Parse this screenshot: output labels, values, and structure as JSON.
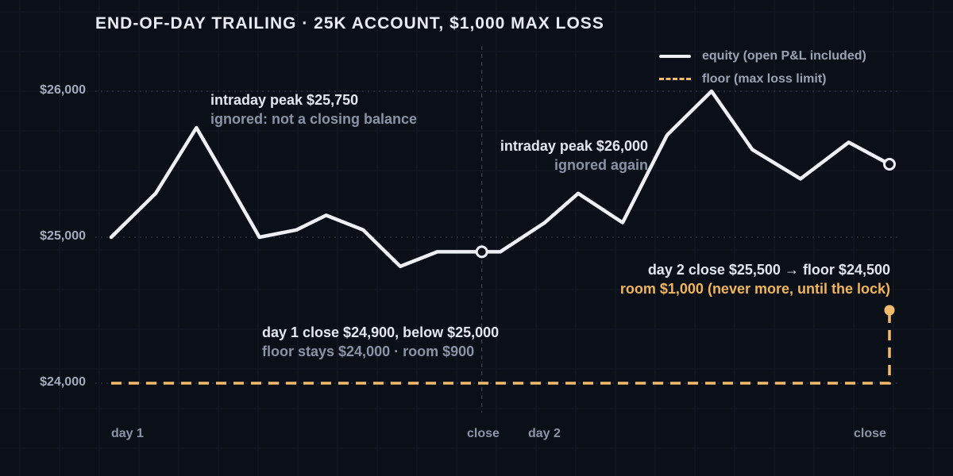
{
  "title": "END-OF-DAY TRAILING · 25K ACCOUNT, $1,000 MAX LOSS",
  "legend": {
    "equity": "equity (open P&L included)",
    "floor": "floor (max loss limit)"
  },
  "colors": {
    "background": "#0b0f17",
    "equity": "#eef0f6",
    "floor": "#f2bc6c",
    "muted_text": "#8a93a6"
  },
  "annotations": {
    "peak1": {
      "line1": "intraday peak $25,750",
      "line2": "ignored: not a closing balance"
    },
    "peak2": {
      "line1": "intraday peak $26,000",
      "line2": "ignored again"
    },
    "day1_close": {
      "line1": "day 1 close $24,900, below $25,000",
      "line2": "floor stays $24,000 · room $900"
    },
    "day2_close": {
      "line1": "day 2 close $25,500 → floor $24,500",
      "line2": "room $1,000 (never more, until the lock)"
    }
  },
  "chart_data": {
    "type": "line",
    "title": "END-OF-DAY TRAILING · 25K ACCOUNT, $1,000 MAX LOSS",
    "y_ticks": [
      {
        "value": 24000,
        "label": "$24,000"
      },
      {
        "value": 25000,
        "label": "$25,000"
      },
      {
        "value": 26000,
        "label": "$26,000"
      }
    ],
    "x_labels": [
      {
        "x": 0,
        "label": "day 1",
        "align": "start"
      },
      {
        "x": 10,
        "label": "close",
        "align": "center"
      },
      {
        "x": 11,
        "label": "day 2",
        "align": "start"
      },
      {
        "x": 21,
        "label": "close",
        "align": "end"
      }
    ],
    "ylim": [
      23700,
      26500
    ],
    "xlim": [
      0,
      21
    ],
    "session_divider_x": 10,
    "series": [
      {
        "name": "equity (open P&L included)",
        "x": [
          0,
          1.2,
          2.3,
          3.1,
          4,
          5,
          5.8,
          6.8,
          7.8,
          8.8,
          10,
          10.5,
          11.7,
          12.6,
          13.8,
          15,
          16.2,
          17.3,
          18.6,
          19.9,
          21
        ],
        "y": [
          25000,
          25300,
          25750,
          25400,
          25000,
          25050,
          25150,
          25050,
          24800,
          24900,
          24900,
          24900,
          25100,
          25300,
          25100,
          25700,
          26000,
          25600,
          25400,
          25650,
          25500
        ]
      },
      {
        "name": "floor (max loss limit)",
        "x": [
          0,
          21,
          21
        ],
        "y": [
          24000,
          24000,
          24500
        ]
      }
    ],
    "markers": [
      {
        "x": 10,
        "y": 24900,
        "style": "hollow"
      },
      {
        "x": 21,
        "y": 25500,
        "style": "hollow"
      },
      {
        "x": 21,
        "y": 24500,
        "style": "filled"
      }
    ],
    "grid": true
  }
}
